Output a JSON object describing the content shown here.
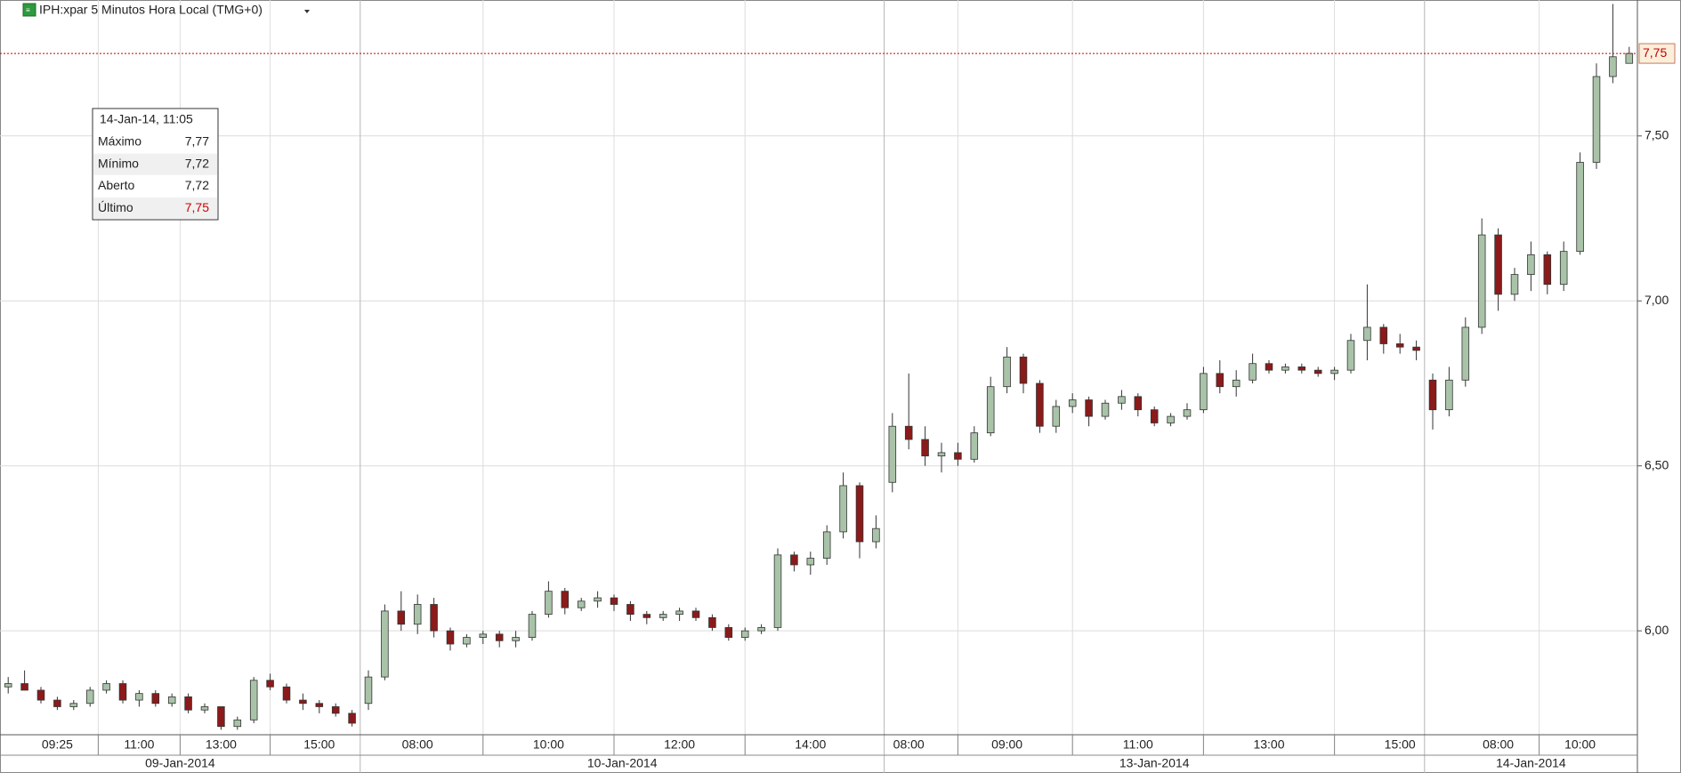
{
  "chart_data": {
    "type": "candlestick",
    "title": "IPH:xpar 5 Minutos Hora Local (TMG+0)",
    "up_color": "#a9c3a9",
    "down_color": "#8b1a1a",
    "grid": true,
    "ylim": [
      5.685,
      7.912
    ],
    "yticks": [
      {
        "value": 6.0,
        "label": "6,00"
      },
      {
        "value": 6.5,
        "label": "6,50"
      },
      {
        "value": 7.0,
        "label": "7,00"
      },
      {
        "value": 7.5,
        "label": "7,50"
      }
    ],
    "last": {
      "value": 7.75,
      "label": "7,75"
    },
    "days": [
      {
        "date": "09-Jan-2014",
        "categories": [
          null,
          null,
          null,
          "09:25",
          null,
          null,
          null,
          null,
          "11:00",
          null,
          null,
          null,
          null,
          "13:00",
          null,
          null,
          null,
          null,
          null,
          "15:00",
          null,
          null
        ],
        "ohlc": [
          [
            5.83,
            5.86,
            5.81,
            5.84
          ],
          [
            5.84,
            5.88,
            5.82,
            5.82
          ],
          [
            5.82,
            5.83,
            5.78,
            5.79
          ],
          [
            5.79,
            5.8,
            5.76,
            5.77
          ],
          [
            5.77,
            5.79,
            5.76,
            5.78
          ],
          [
            5.78,
            5.83,
            5.77,
            5.82
          ],
          [
            5.82,
            5.85,
            5.81,
            5.84
          ],
          [
            5.84,
            5.85,
            5.78,
            5.79
          ],
          [
            5.79,
            5.82,
            5.77,
            5.81
          ],
          [
            5.81,
            5.82,
            5.77,
            5.78
          ],
          [
            5.78,
            5.81,
            5.77,
            5.8
          ],
          [
            5.8,
            5.81,
            5.75,
            5.76
          ],
          [
            5.76,
            5.78,
            5.75,
            5.77
          ],
          [
            5.77,
            5.77,
            5.7,
            5.71
          ],
          [
            5.71,
            5.74,
            5.7,
            5.73
          ],
          [
            5.73,
            5.86,
            5.72,
            5.85
          ],
          [
            5.85,
            5.87,
            5.82,
            5.83
          ],
          [
            5.83,
            5.84,
            5.78,
            5.79
          ],
          [
            5.79,
            5.81,
            5.76,
            5.78
          ],
          [
            5.78,
            5.79,
            5.75,
            5.77
          ],
          [
            5.77,
            5.78,
            5.74,
            5.75
          ],
          [
            5.75,
            5.76,
            5.71,
            5.72
          ]
        ]
      },
      {
        "date": "10-Jan-2014",
        "categories": [
          null,
          null,
          null,
          "08:00",
          null,
          null,
          null,
          null,
          null,
          null,
          null,
          "10:00",
          null,
          null,
          null,
          null,
          null,
          null,
          null,
          "12:00",
          null,
          null,
          null,
          null,
          null,
          null,
          null,
          "14:00",
          null,
          null,
          null,
          null
        ],
        "ohlc": [
          [
            5.78,
            5.88,
            5.76,
            5.86
          ],
          [
            5.86,
            6.08,
            5.85,
            6.06
          ],
          [
            6.06,
            6.12,
            6.0,
            6.02
          ],
          [
            6.02,
            6.11,
            5.99,
            6.08
          ],
          [
            6.08,
            6.1,
            5.98,
            6.0
          ],
          [
            6.0,
            6.01,
            5.94,
            5.96
          ],
          [
            5.96,
            5.99,
            5.95,
            5.98
          ],
          [
            5.98,
            6.0,
            5.96,
            5.99
          ],
          [
            5.99,
            6.0,
            5.95,
            5.97
          ],
          [
            5.97,
            6.0,
            5.95,
            5.98
          ],
          [
            5.98,
            6.06,
            5.97,
            6.05
          ],
          [
            6.05,
            6.15,
            6.04,
            6.12
          ],
          [
            6.12,
            6.13,
            6.05,
            6.07
          ],
          [
            6.07,
            6.1,
            6.06,
            6.09
          ],
          [
            6.09,
            6.12,
            6.07,
            6.1
          ],
          [
            6.1,
            6.11,
            6.06,
            6.08
          ],
          [
            6.08,
            6.09,
            6.03,
            6.05
          ],
          [
            6.05,
            6.06,
            6.02,
            6.04
          ],
          [
            6.04,
            6.06,
            6.03,
            6.05
          ],
          [
            6.05,
            6.07,
            6.03,
            6.06
          ],
          [
            6.06,
            6.07,
            6.03,
            6.04
          ],
          [
            6.04,
            6.05,
            6.0,
            6.01
          ],
          [
            6.01,
            6.02,
            5.97,
            5.98
          ],
          [
            5.98,
            6.01,
            5.97,
            6.0
          ],
          [
            6.0,
            6.02,
            5.99,
            6.01
          ],
          [
            6.01,
            6.25,
            6.0,
            6.23
          ],
          [
            6.23,
            6.24,
            6.18,
            6.2
          ],
          [
            6.2,
            6.24,
            6.17,
            6.22
          ],
          [
            6.22,
            6.32,
            6.2,
            6.3
          ],
          [
            6.3,
            6.48,
            6.28,
            6.44
          ],
          [
            6.44,
            6.45,
            6.22,
            6.27
          ],
          [
            6.27,
            6.35,
            6.25,
            6.31
          ]
        ]
      },
      {
        "date": "13-Jan-2014",
        "categories": [
          null,
          "08:00",
          null,
          null,
          null,
          null,
          null,
          "09:00",
          null,
          null,
          null,
          null,
          null,
          null,
          null,
          "11:00",
          null,
          null,
          null,
          null,
          null,
          null,
          null,
          "13:00",
          null,
          null,
          null,
          null,
          null,
          null,
          null,
          "15:00",
          null
        ],
        "ohlc": [
          [
            6.45,
            6.66,
            6.42,
            6.62
          ],
          [
            6.62,
            6.78,
            6.55,
            6.58
          ],
          [
            6.58,
            6.62,
            6.5,
            6.53
          ],
          [
            6.53,
            6.57,
            6.48,
            6.54
          ],
          [
            6.54,
            6.57,
            6.5,
            6.52
          ],
          [
            6.52,
            6.62,
            6.51,
            6.6
          ],
          [
            6.6,
            6.77,
            6.59,
            6.74
          ],
          [
            6.74,
            6.86,
            6.72,
            6.83
          ],
          [
            6.83,
            6.84,
            6.72,
            6.75
          ],
          [
            6.75,
            6.76,
            6.6,
            6.62
          ],
          [
            6.62,
            6.7,
            6.6,
            6.68
          ],
          [
            6.68,
            6.72,
            6.66,
            6.7
          ],
          [
            6.7,
            6.71,
            6.62,
            6.65
          ],
          [
            6.65,
            6.7,
            6.64,
            6.69
          ],
          [
            6.69,
            6.73,
            6.67,
            6.71
          ],
          [
            6.71,
            6.72,
            6.65,
            6.67
          ],
          [
            6.67,
            6.68,
            6.62,
            6.63
          ],
          [
            6.63,
            6.66,
            6.62,
            6.65
          ],
          [
            6.65,
            6.69,
            6.64,
            6.67
          ],
          [
            6.67,
            6.8,
            6.66,
            6.78
          ],
          [
            6.78,
            6.82,
            6.72,
            6.74
          ],
          [
            6.74,
            6.79,
            6.71,
            6.76
          ],
          [
            6.76,
            6.84,
            6.75,
            6.81
          ],
          [
            6.81,
            6.82,
            6.78,
            6.79
          ],
          [
            6.79,
            6.81,
            6.78,
            6.8
          ],
          [
            6.8,
            6.81,
            6.78,
            6.79
          ],
          [
            6.79,
            6.8,
            6.77,
            6.78
          ],
          [
            6.78,
            6.8,
            6.76,
            6.79
          ],
          [
            6.79,
            6.9,
            6.78,
            6.88
          ],
          [
            6.88,
            7.05,
            6.82,
            6.92
          ],
          [
            6.92,
            6.93,
            6.84,
            6.87
          ],
          [
            6.87,
            6.9,
            6.84,
            6.86
          ],
          [
            6.86,
            6.88,
            6.82,
            6.85
          ]
        ]
      },
      {
        "date": "14-Jan-2014",
        "categories": [
          null,
          null,
          null,
          null,
          "08:00",
          null,
          null,
          null,
          null,
          "10:00",
          null,
          null,
          null
        ],
        "ohlc": [
          [
            6.76,
            6.78,
            6.61,
            6.67
          ],
          [
            6.67,
            6.8,
            6.65,
            6.76
          ],
          [
            6.76,
            6.95,
            6.74,
            6.92
          ],
          [
            6.92,
            7.25,
            6.9,
            7.2
          ],
          [
            7.2,
            7.22,
            6.97,
            7.02
          ],
          [
            7.02,
            7.1,
            7.0,
            7.08
          ],
          [
            7.08,
            7.18,
            7.03,
            7.14
          ],
          [
            7.14,
            7.15,
            7.02,
            7.05
          ],
          [
            7.05,
            7.18,
            7.03,
            7.15
          ],
          [
            7.15,
            7.45,
            7.14,
            7.42
          ],
          [
            7.42,
            7.72,
            7.4,
            7.68
          ],
          [
            7.68,
            7.9,
            7.66,
            7.74
          ],
          [
            7.72,
            7.77,
            7.72,
            7.75
          ]
        ]
      }
    ]
  },
  "tooltip": {
    "title": "14-Jan-14, 11:05",
    "rows": [
      {
        "label": "Máximo",
        "value": "7,77"
      },
      {
        "label": "Mínimo",
        "value": "7,72"
      },
      {
        "label": "Aberto",
        "value": "7,72"
      },
      {
        "label": "Último",
        "value": "7,75"
      }
    ]
  }
}
